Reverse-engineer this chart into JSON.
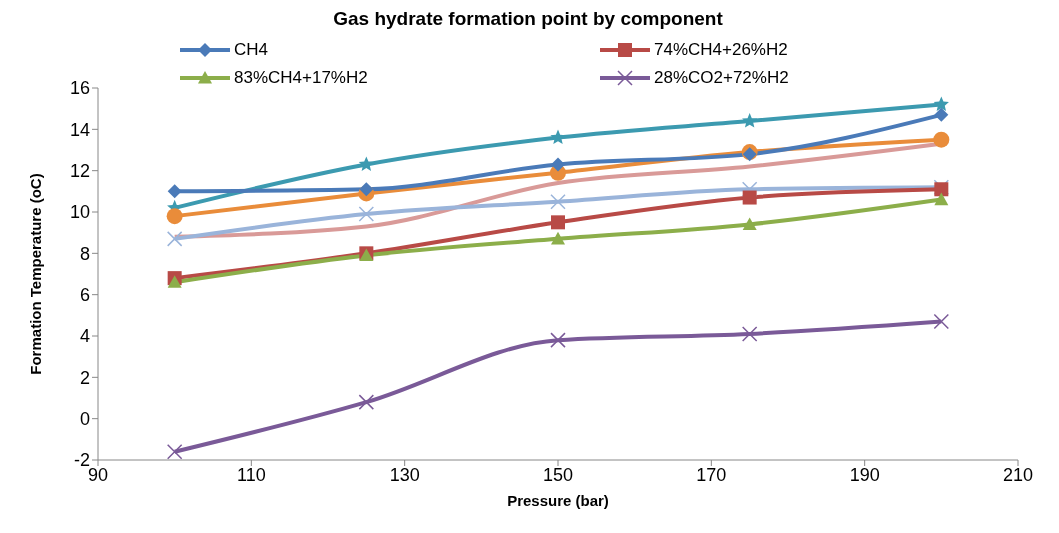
{
  "chart_data": {
    "type": "line",
    "title": "Gas hydrate formation point by component",
    "xlabel": "Pressure (bar)",
    "ylabel": "Formation Temperature (oC)",
    "x": [
      100,
      125,
      150,
      175,
      200
    ],
    "xlim": [
      90,
      210
    ],
    "xticks": [
      90,
      110,
      130,
      150,
      170,
      190,
      210
    ],
    "ylim": [
      -2,
      16
    ],
    "yticks": [
      -2,
      0,
      2,
      4,
      6,
      8,
      10,
      12,
      14,
      16
    ],
    "grid": false,
    "legend": "top",
    "series": [
      {
        "name": "CH4",
        "color": "#4a7ab8",
        "marker": "diamond",
        "values": [
          11.0,
          11.1,
          12.3,
          12.8,
          14.7
        ]
      },
      {
        "name": "74%CH4+26%H2",
        "color": "#b84a46",
        "marker": "square",
        "values": [
          6.8,
          8.0,
          9.5,
          10.7,
          11.1
        ]
      },
      {
        "name": "83%CH4+17%H2",
        "color": "#8cae4a",
        "marker": "triangle",
        "values": [
          6.6,
          7.9,
          8.7,
          9.4,
          10.6
        ]
      },
      {
        "name": "28%CO2+72%H2",
        "color": "#7a5a98",
        "marker": "cross",
        "values": [
          -1.6,
          0.8,
          3.8,
          4.1,
          4.7
        ]
      },
      {
        "color": "#3c9ab0",
        "marker": "star",
        "values": [
          10.2,
          12.3,
          13.6,
          14.4,
          15.2
        ]
      },
      {
        "color": "#e98c3a",
        "marker": "circle",
        "values": [
          9.8,
          10.9,
          11.9,
          12.9,
          13.5
        ]
      },
      {
        "color": "#d99a98",
        "marker": "none",
        "values": [
          8.8,
          9.3,
          11.4,
          12.2,
          13.3
        ]
      },
      {
        "color": "#9ab4da",
        "marker": "cross",
        "values": [
          8.7,
          9.9,
          10.5,
          11.1,
          11.2
        ]
      }
    ]
  }
}
